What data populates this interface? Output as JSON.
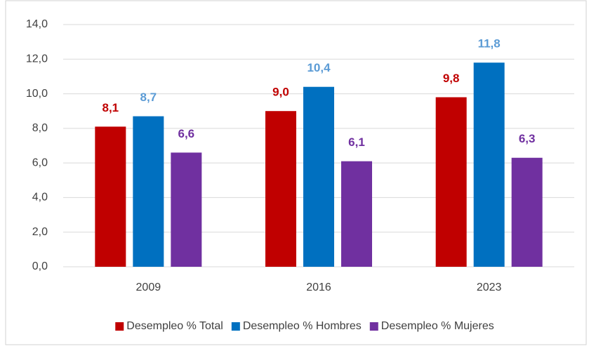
{
  "chart_data": {
    "type": "bar",
    "categories": [
      "2009",
      "2016",
      "2023"
    ],
    "series": [
      {
        "name": "Desempleo % Total",
        "color": "#c00000",
        "label_color": "#c00000",
        "values": [
          8.1,
          9.0,
          9.8
        ],
        "value_labels": [
          "8,1",
          "9,0",
          "9,8"
        ]
      },
      {
        "name": "Desempleo % Hombres",
        "color": "#0070c0",
        "label_color": "#5b9bd5",
        "values": [
          8.7,
          10.4,
          11.8
        ],
        "value_labels": [
          "8,7",
          "10,4",
          "11,8"
        ]
      },
      {
        "name": "Desempleo % Mujeres",
        "color": "#7030a0",
        "label_color": "#7030a0",
        "values": [
          6.6,
          6.1,
          6.3
        ],
        "value_labels": [
          "6,6",
          "6,1",
          "6,3"
        ]
      }
    ],
    "ylim": [
      0,
      14
    ],
    "yticks": [
      {
        "value": 0,
        "label": "0,0"
      },
      {
        "value": 2,
        "label": "2,0"
      },
      {
        "value": 4,
        "label": "4,0"
      },
      {
        "value": 6,
        "label": "6,0"
      },
      {
        "value": 8,
        "label": "8,0"
      },
      {
        "value": 10,
        "label": "10,0"
      },
      {
        "value": 12,
        "label": "12,0"
      },
      {
        "value": 14,
        "label": "14,0"
      }
    ],
    "grid": true,
    "legend": "bottom"
  }
}
